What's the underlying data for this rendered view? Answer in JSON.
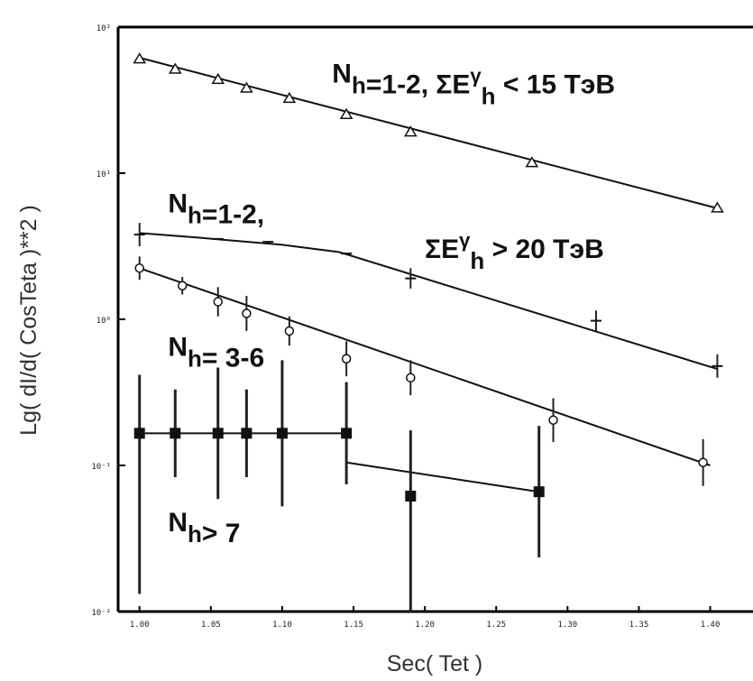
{
  "chart_data": {
    "type": "scatter",
    "title": "",
    "xlabel": "Sec( Tet )",
    "ylabel": "Lg( dI/d( CosTeta )**2 )",
    "x_ticks": [
      {
        "value": 1.0,
        "label": "1.00"
      },
      {
        "value": 1.05,
        "label": "1.05"
      },
      {
        "value": 1.1,
        "label": "1.10"
      },
      {
        "value": 1.15,
        "label": "1.15"
      },
      {
        "value": 1.2,
        "label": "1.20"
      },
      {
        "value": 1.25,
        "label": "1.25"
      },
      {
        "value": 1.3,
        "label": "1.30"
      },
      {
        "value": 1.35,
        "label": "1.35"
      },
      {
        "value": 1.4,
        "label": "1.40"
      }
    ],
    "y_ticks": [
      {
        "value": 2,
        "label": "10²"
      },
      {
        "value": 1,
        "label": "10¹"
      },
      {
        "value": 0,
        "label": "10⁰"
      },
      {
        "value": -1,
        "label": "10⁻¹"
      },
      {
        "value": -2,
        "label": "10⁻²"
      }
    ],
    "xlim": [
      0.985,
      1.43
    ],
    "ylim": [
      -2,
      2
    ],
    "y_scale": "log",
    "grid": false,
    "series": [
      {
        "marker": "triangle",
        "points": [
          {
            "x": 1.0,
            "y": 1.78
          },
          {
            "x": 1.025,
            "y": 1.71
          },
          {
            "x": 1.055,
            "y": 1.64
          },
          {
            "x": 1.075,
            "y": 1.58
          },
          {
            "x": 1.105,
            "y": 1.51
          },
          {
            "x": 1.145,
            "y": 1.4
          },
          {
            "x": 1.19,
            "y": 1.28
          },
          {
            "x": 1.275,
            "y": 1.07
          },
          {
            "x": 1.405,
            "y": 0.76
          }
        ],
        "fit": [
          [
            1.0,
            1.79
          ],
          [
            1.405,
            0.76
          ]
        ]
      },
      {
        "marker": "plus",
        "points": [
          {
            "x": 1.0,
            "y": 0.58,
            "err": 0.08
          },
          {
            "x": 1.055,
            "y": 0.55
          },
          {
            "x": 1.09,
            "y": 0.53
          },
          {
            "x": 1.145,
            "y": 0.45
          },
          {
            "x": 1.19,
            "y": 0.28,
            "err": 0.07
          },
          {
            "x": 1.32,
            "y": -0.01,
            "err": 0.07
          },
          {
            "x": 1.405,
            "y": -0.32,
            "err": 0.08
          }
        ],
        "fit": [
          [
            1.0,
            0.59
          ],
          [
            1.04,
            0.56
          ],
          [
            1.1,
            0.51
          ],
          [
            1.14,
            0.46
          ],
          [
            1.405,
            -0.34
          ]
        ]
      },
      {
        "marker": "circle",
        "points": [
          {
            "x": 1.0,
            "y": 0.35,
            "err": 0.08
          },
          {
            "x": 1.03,
            "y": 0.23,
            "err": 0.06
          },
          {
            "x": 1.055,
            "y": 0.12,
            "err": 0.1
          },
          {
            "x": 1.075,
            "y": 0.04,
            "err": 0.12
          },
          {
            "x": 1.105,
            "y": -0.08,
            "err": 0.1
          },
          {
            "x": 1.145,
            "y": -0.27,
            "err": 0.12
          },
          {
            "x": 1.19,
            "y": -0.4,
            "err": 0.12
          },
          {
            "x": 1.29,
            "y": -0.69,
            "err": 0.15
          },
          {
            "x": 1.395,
            "y": -0.98,
            "err": 0.16
          }
        ],
        "fit": [
          [
            1.0,
            0.35
          ],
          [
            1.4,
            -1.0
          ]
        ]
      },
      {
        "marker": "square",
        "points": [
          {
            "x": 1.0,
            "y": -0.78,
            "err_low": 1.1,
            "err_high": 0.4
          },
          {
            "x": 1.025,
            "y": -0.78,
            "err": 0.3
          },
          {
            "x": 1.055,
            "y": -0.78,
            "err": 0.45
          },
          {
            "x": 1.075,
            "y": -0.78,
            "err": 0.3
          },
          {
            "x": 1.1,
            "y": -0.78,
            "err": 0.5
          },
          {
            "x": 1.145,
            "y": -0.78,
            "err": 0.35
          },
          {
            "x": 1.19,
            "y": -1.21,
            "err_low": 0.8,
            "err_high": 0.45
          },
          {
            "x": 1.28,
            "y": -1.18,
            "err": 0.45
          }
        ],
        "fit_segments": [
          [
            [
              1.0,
              -0.78
            ],
            [
              1.145,
              -0.78
            ]
          ],
          [
            [
              1.145,
              -0.98
            ],
            [
              1.28,
              -1.18
            ]
          ]
        ]
      }
    ],
    "annotations": [
      {
        "base": "N",
        "sub": "h",
        "rest": "=1-2, ΣE",
        "sup2": "γ",
        "sub2": "h",
        "rest2": " < 15 ТэВ",
        "x": 1.135,
        "y": 1.62
      },
      {
        "base": "N",
        "sub": "h",
        "rest": "=1-2,",
        "x": 1.02,
        "y": 0.73
      },
      {
        "base": "",
        "sub": "",
        "rest": "ΣE",
        "sup2": "γ",
        "sub2": "h",
        "rest2": " > 20 ТэВ",
        "x": 1.2,
        "y": 0.42
      },
      {
        "base": "N",
        "sub": "h",
        "rest": "= 3-6",
        "x": 1.02,
        "y": -0.25
      },
      {
        "base": "N",
        "sub": "h",
        "rest": "> 7",
        "x": 1.02,
        "y": -1.45
      }
    ]
  }
}
